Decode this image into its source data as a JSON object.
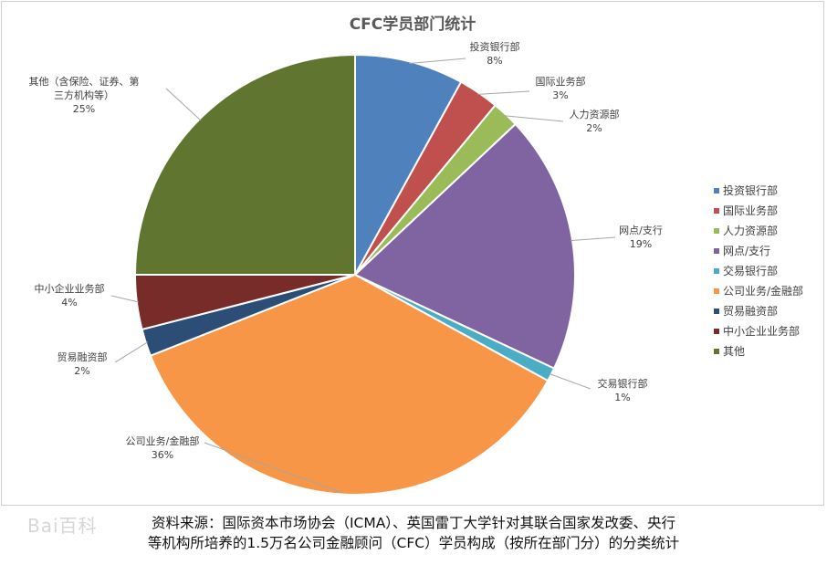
{
  "chart_data": {
    "type": "pie",
    "title": "CFC学员部门统计",
    "slices": [
      {
        "name": "投资银行部",
        "label": "投资银行部",
        "value": 8,
        "pct": "8%",
        "color": "#4f81bd"
      },
      {
        "name": "国际业务部",
        "label": "国际业务部",
        "value": 3,
        "pct": "3%",
        "color": "#c0504d"
      },
      {
        "name": "人力资源部",
        "label": "人力资源部",
        "value": 2,
        "pct": "2%",
        "color": "#9bbb59"
      },
      {
        "name": "网点/支行",
        "label": "网点/支行",
        "value": 19,
        "pct": "19%",
        "color": "#8064a2"
      },
      {
        "name": "交易银行部",
        "label": "交易银行部",
        "value": 1,
        "pct": "1%",
        "color": "#4bacc6"
      },
      {
        "name": "公司业务/金融部",
        "label": "公司业务/金融部",
        "value": 36,
        "pct": "36%",
        "color": "#f79646"
      },
      {
        "name": "贸易融资部",
        "label": "贸易融资部",
        "value": 2,
        "pct": "2%",
        "color": "#2c4d75"
      },
      {
        "name": "中小企业业务部",
        "label": "中小企业业务部",
        "value": 4,
        "pct": "4%",
        "color": "#772c2a"
      },
      {
        "name": "其他",
        "label": "其他（含保险、证券、第三方机构等）",
        "value": 25,
        "pct": "25%",
        "color": "#5f7530"
      }
    ],
    "legend_position": "right"
  },
  "source_note": {
    "line1": "资料来源：国际资本市场协会（ICMA）、英国雷丁大学针对其联合国家发改委、央行",
    "line2": "等机构所培养的1.5万名公司金融顾问（CFC）学员构成（按所在部门分）的分类统计"
  },
  "watermark": "Bai百科"
}
